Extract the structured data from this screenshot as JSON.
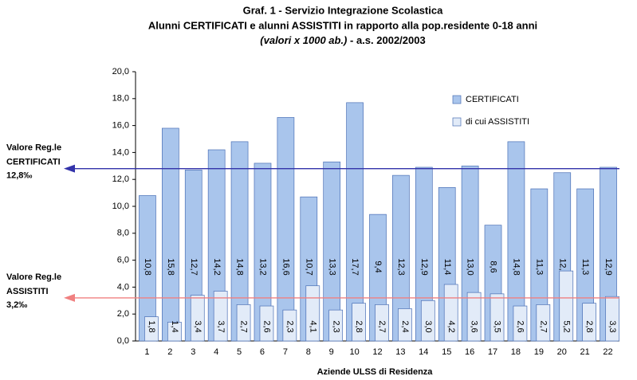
{
  "chart_data": {
    "type": "bar",
    "title": [
      "Graf. 1 - Servizio Integrazione Scolastica",
      "Alunni CERTIFICATI e alunni ASSISTITI in rapporto alla pop.residente 0-18 anni"
    ],
    "subtitle": [
      "(valori x 1000 ab.)",
      " - a.s. 2002/2003"
    ],
    "x_label": "Aziende ULSS di Residenza",
    "categories": [
      "1",
      "2",
      "3",
      "4",
      "5",
      "6",
      "7",
      "8",
      "9",
      "10",
      "12",
      "13",
      "14",
      "15",
      "16",
      "17",
      "18",
      "19",
      "20",
      "21",
      "22"
    ],
    "series": [
      {
        "name": "CERTIFICATI",
        "color": "#a9c5ec",
        "stroke": "#4a6fb5",
        "values": [
          10.8,
          15.8,
          12.7,
          14.2,
          14.8,
          13.2,
          16.6,
          10.7,
          13.3,
          17.7,
          9.4,
          12.3,
          12.9,
          11.4,
          13.0,
          8.6,
          14.8,
          11.3,
          12.5,
          11.3,
          12.9
        ],
        "value_labels": [
          "10,8",
          "15,8",
          "12,7",
          "14,2",
          "14,8",
          "13,2",
          "16,6",
          "10,7",
          "13,3",
          "17,7",
          "9,4",
          "12,3",
          "12,9",
          "11,4",
          "13,0",
          "8,6",
          "14,8",
          "11,3",
          "12,5",
          "11,3",
          "12,9"
        ]
      },
      {
        "name": "di cui ASSISTITI",
        "color": "#e2ebf8",
        "stroke": "#4a6fb5",
        "values": [
          1.8,
          1.4,
          3.4,
          3.7,
          2.7,
          2.6,
          2.3,
          4.1,
          2.3,
          2.8,
          2.7,
          2.4,
          3.0,
          4.2,
          3.6,
          3.5,
          2.6,
          2.7,
          5.2,
          2.8,
          3.3
        ],
        "value_labels": [
          "1,8",
          "1,4",
          "3,4",
          "3,7",
          "2,7",
          "2,6",
          "2,3",
          "4,1",
          "2,3",
          "2,8",
          "2,7",
          "2,4",
          "3,0",
          "4,2",
          "3,6",
          "3,5",
          "2,6",
          "2,7",
          "5,2",
          "2,8",
          "3,3"
        ]
      }
    ],
    "ylim": [
      0,
      20
    ],
    "yticks": [
      {
        "value": 0,
        "label": "0,0"
      },
      {
        "value": 2,
        "label": "2,0"
      },
      {
        "value": 4,
        "label": "4,0"
      },
      {
        "value": 6,
        "label": "6,0"
      },
      {
        "value": 8,
        "label": "8,0"
      },
      {
        "value": 10,
        "label": "10,0"
      },
      {
        "value": 12,
        "label": "12,0"
      },
      {
        "value": 14,
        "label": "14,0"
      },
      {
        "value": 16,
        "label": "16,0"
      },
      {
        "value": 18,
        "label": "18,0"
      },
      {
        "value": 20,
        "label": "20,0"
      }
    ],
    "reference_lines": [
      {
        "label": [
          "Valore Reg.le",
          "CERTIFICATI"
        ],
        "value": 12.8,
        "value_label": "12,8‰",
        "color": "#3333aa"
      },
      {
        "label": [
          "Valore Reg.le",
          "ASSISTITI"
        ],
        "value": 3.2,
        "value_label": "3,2‰",
        "color": "#f08080"
      }
    ]
  }
}
